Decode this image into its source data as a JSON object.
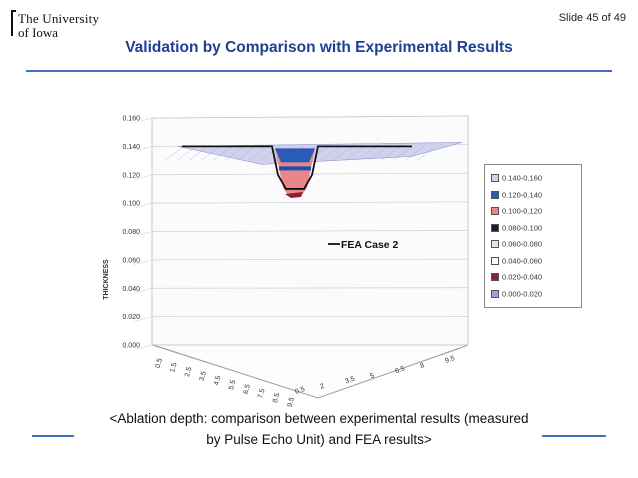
{
  "header": {
    "logo_line1": "The University",
    "logo_line2": "of Iowa",
    "slide_number": "Slide 45 of 49",
    "title": "Validation by Comparison with Experimental Results"
  },
  "caption": {
    "line1": "<Ablation depth: comparison between experimental results (measured",
    "line2": "by Pulse Echo Unit) and FEA results>"
  },
  "colors": {
    "title": "#1f3f93",
    "rule": "#3f6fbf",
    "surface_top": "#a9aee0",
    "crater_blue": "#2a5bb8",
    "crater_red": "#e8868a"
  },
  "chart_data": {
    "type": "surface3d",
    "zlabel": "THICKNESS",
    "z_ticks": [
      "0.000",
      "0.020",
      "0.040",
      "0.060",
      "0.080",
      "0.100",
      "0.120",
      "0.140",
      "0.160"
    ],
    "x_ticks": [
      "0.5",
      "1.5",
      "2.5",
      "3.5",
      "4.5",
      "5.5",
      "6.5",
      "7.5",
      "8.5",
      "9.5"
    ],
    "y_ticks": [
      "0.5",
      "2",
      "3.5",
      "5",
      "6.5",
      "8",
      "9.5"
    ],
    "zlim": [
      0,
      0.16
    ],
    "grid": true,
    "legend_position": "right",
    "legend": [
      {
        "label": "0.140-0.160",
        "color": "#cfd2ea"
      },
      {
        "label": "0.120-0.140",
        "color": "#2a5bb8"
      },
      {
        "label": "0.100-0.120",
        "color": "#e8868a"
      },
      {
        "label": "0.080-0.100",
        "color": "#1a1a3a"
      },
      {
        "label": "0.060-0.080",
        "color": "#e3e3f5"
      },
      {
        "label": "0.040-0.060",
        "color": "#ffffff"
      },
      {
        "label": "0.020-0.040",
        "color": "#8a2030"
      },
      {
        "label": "0.000-0.020",
        "color": "#9aa3e0"
      }
    ],
    "surface_level": 0.14,
    "crater_min": 0.105,
    "overlay_series": {
      "name": "FEA Case 2",
      "baseline": 0.14,
      "min": 0.11
    }
  }
}
